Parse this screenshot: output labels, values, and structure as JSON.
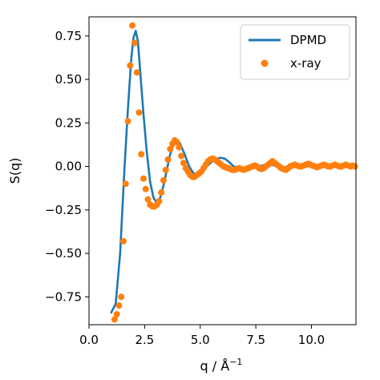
{
  "chart_data": {
    "type": "line",
    "xlabel": "q / Å",
    "xlabel_sup": "−1",
    "ylabel": "S(q)",
    "xlim": [
      0.0,
      12.0
    ],
    "ylim": [
      -0.91,
      0.86
    ],
    "xticks": [
      0.0,
      2.5,
      5.0,
      7.5,
      10.0
    ],
    "xtick_labels": [
      "0.0",
      "2.5",
      "5.0",
      "7.5",
      "10.0"
    ],
    "yticks": [
      0.75,
      0.5,
      0.25,
      0.0,
      -0.25,
      -0.5,
      -0.75
    ],
    "ytick_labels": [
      "0.75",
      "0.50",
      "0.25",
      "0.00",
      "−0.25",
      "−0.50",
      "−0.75"
    ],
    "grid": false,
    "legend_position": "top-right",
    "series": [
      {
        "name": "DPMD",
        "kind": "line",
        "color": "#1f77b4",
        "x": [
          1.0,
          1.2,
          1.4,
          1.6,
          1.75,
          1.9,
          2.0,
          2.1,
          2.2,
          2.3,
          2.45,
          2.6,
          2.75,
          2.9,
          3.05,
          3.2,
          3.35,
          3.5,
          3.65,
          3.8,
          3.95,
          4.1,
          4.3,
          4.5,
          4.7,
          4.9,
          5.1,
          5.3,
          5.5,
          5.7,
          5.9,
          6.1,
          6.3,
          6.5,
          6.8,
          7.2,
          7.6,
          8.0,
          8.4,
          8.8,
          9.2,
          9.6,
          10.0,
          10.5,
          11.0,
          11.5,
          12.0
        ],
        "y": [
          -0.84,
          -0.79,
          -0.5,
          0.0,
          0.33,
          0.62,
          0.74,
          0.78,
          0.72,
          0.55,
          0.3,
          0.08,
          -0.09,
          -0.18,
          -0.21,
          -0.18,
          -0.11,
          -0.02,
          0.07,
          0.13,
          0.15,
          0.13,
          0.07,
          0.0,
          -0.04,
          -0.05,
          -0.03,
          0.0,
          0.025,
          0.04,
          0.05,
          0.045,
          0.025,
          0.0,
          -0.01,
          -0.01,
          0.0,
          0.01,
          0.005,
          -0.005,
          0.0,
          0.005,
          0.0,
          0.0,
          0.0,
          0.0,
          0.0
        ]
      },
      {
        "name": "x-ray",
        "kind": "scatter",
        "color": "#ff7f0e",
        "x": [
          1.15,
          1.25,
          1.35,
          1.45,
          1.55,
          1.65,
          1.75,
          1.85,
          1.95,
          2.05,
          2.15,
          2.25,
          2.35,
          2.45,
          2.55,
          2.65,
          2.75,
          2.85,
          2.95,
          3.05,
          3.15,
          3.25,
          3.35,
          3.45,
          3.55,
          3.65,
          3.75,
          3.85,
          3.95,
          4.05,
          4.15,
          4.25,
          4.35,
          4.45,
          4.55,
          4.65,
          4.75,
          4.85,
          4.95,
          5.05,
          5.15,
          5.25,
          5.35,
          5.45,
          5.55,
          5.65,
          5.75,
          5.85,
          5.95,
          6.05,
          6.15,
          6.25,
          6.35,
          6.45,
          6.55,
          6.65,
          6.75,
          6.85,
          6.95,
          7.05,
          7.15,
          7.25,
          7.35,
          7.45,
          7.55,
          7.65,
          7.75,
          7.85,
          7.95,
          8.05,
          8.15,
          8.25,
          8.35,
          8.45,
          8.55,
          8.65,
          8.75,
          8.85,
          8.95,
          9.05,
          9.15,
          9.25,
          9.35,
          9.45,
          9.55,
          9.65,
          9.75,
          9.85,
          9.95,
          10.05,
          10.15,
          10.25,
          10.35,
          10.45,
          10.55,
          10.65,
          10.75,
          10.85,
          10.95,
          11.05,
          11.15,
          11.25,
          11.35,
          11.45,
          11.55,
          11.65,
          11.75,
          11.85,
          11.95
        ],
        "y": [
          -0.88,
          -0.85,
          -0.8,
          -0.75,
          -0.43,
          -0.1,
          0.26,
          0.58,
          0.81,
          0.71,
          0.54,
          0.31,
          0.07,
          -0.07,
          -0.13,
          -0.19,
          -0.22,
          -0.23,
          -0.23,
          -0.22,
          -0.2,
          -0.15,
          -0.08,
          -0.02,
          0.04,
          0.1,
          0.13,
          0.15,
          0.14,
          0.11,
          0.06,
          0.02,
          -0.01,
          -0.03,
          -0.05,
          -0.06,
          -0.06,
          -0.05,
          -0.04,
          -0.03,
          -0.01,
          0.01,
          0.03,
          0.04,
          0.045,
          0.04,
          0.03,
          0.02,
          0.01,
          0.0,
          -0.005,
          -0.01,
          -0.015,
          -0.02,
          -0.02,
          -0.015,
          -0.01,
          -0.015,
          -0.02,
          -0.015,
          -0.01,
          -0.005,
          0.0,
          0.005,
          0.0,
          -0.01,
          -0.015,
          -0.01,
          0.0,
          0.01,
          0.02,
          0.03,
          0.02,
          0.01,
          0.0,
          -0.01,
          -0.015,
          -0.02,
          -0.01,
          0.0,
          0.005,
          0.01,
          0.005,
          0.0,
          0.0,
          0.005,
          0.01,
          0.015,
          0.01,
          0.005,
          0.0,
          -0.005,
          0.0,
          0.005,
          0.01,
          0.005,
          0.0,
          0.0,
          0.005,
          0.01,
          0.005,
          0.0,
          0.0,
          0.005,
          0.01,
          0.005,
          0.0,
          0.005,
          0.0
        ]
      }
    ]
  }
}
